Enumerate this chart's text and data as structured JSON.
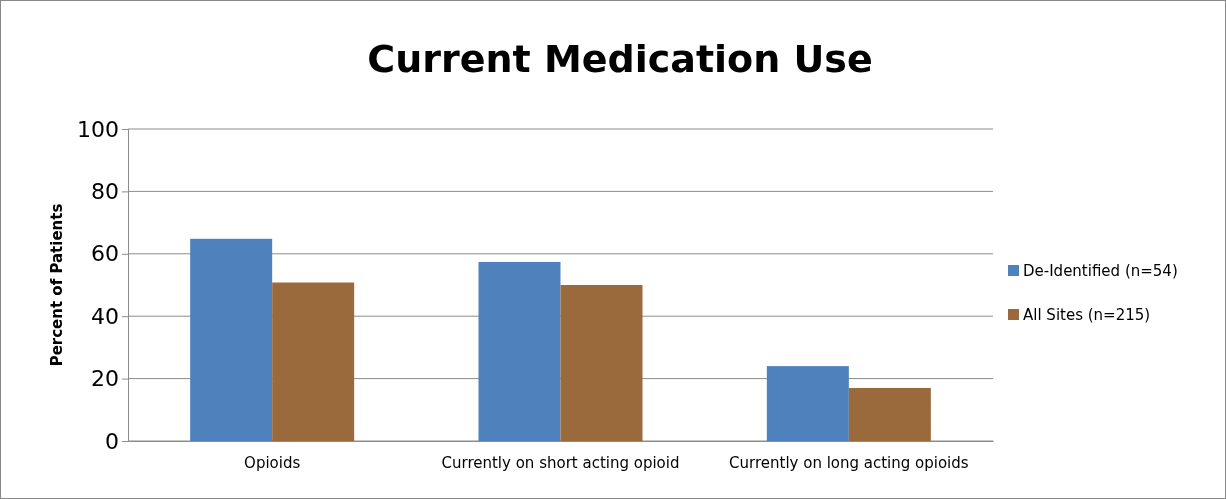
{
  "chart_data": {
    "type": "bar",
    "title": "Current Medication Use",
    "ylabel": "Percent of Patients",
    "categories": [
      "Opioids",
      "Currently on short acting opioid",
      "Currently on long acting opioids"
    ],
    "series": [
      {
        "name": "De-Identified (n=54)",
        "color": "#4f81bd",
        "values": [
          64.8,
          57.4,
          24
        ]
      },
      {
        "name": "All Sites (n=215)",
        "color": "#9b6a3c",
        "values": [
          50.8,
          50,
          17
        ]
      }
    ],
    "ylim": [
      0,
      100
    ],
    "yticks": [
      0,
      20,
      40,
      60,
      80,
      100
    ],
    "grid": "y",
    "legend": "right"
  }
}
